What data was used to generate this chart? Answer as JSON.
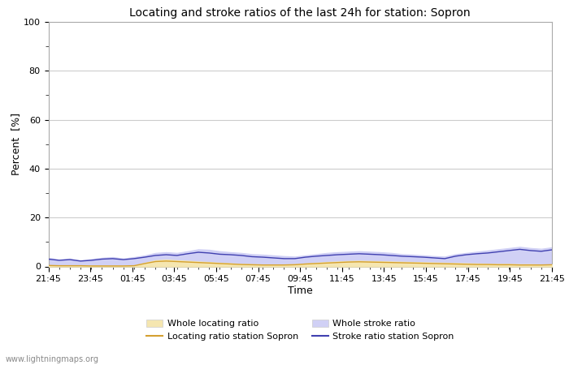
{
  "title": "Locating and stroke ratios of the last 24h for station: Sopron",
  "xlabel": "Time",
  "ylabel": "Percent  [%]",
  "ylim": [
    0,
    100
  ],
  "yticks": [
    0,
    20,
    40,
    60,
    80,
    100
  ],
  "ytick_minor": [
    10,
    30,
    50,
    70,
    90
  ],
  "x_labels": [
    "21:45",
    "23:45",
    "01:45",
    "03:45",
    "05:45",
    "07:45",
    "09:45",
    "11:45",
    "13:45",
    "15:45",
    "17:45",
    "19:45",
    "21:45"
  ],
  "background_color": "#ffffff",
  "plot_bg_color": "#ffffff",
  "grid_color": "#cccccc",
  "watermark": "www.lightningmaps.org",
  "whole_locating_color": "#f5e6b0",
  "whole_stroke_color": "#d0d0f5",
  "locating_station_color": "#d4a030",
  "stroke_station_color": "#4040b0",
  "whole_locating_ratio": [
    0.5,
    0.4,
    0.4,
    0.4,
    0.3,
    0.3,
    0.3,
    0.3,
    0.4,
    1.5,
    2.5,
    2.8,
    2.5,
    2.3,
    2.0,
    1.8,
    1.5,
    1.3,
    1.0,
    0.9,
    0.8,
    0.8,
    0.8,
    0.9,
    1.2,
    1.5,
    1.8,
    2.0,
    2.2,
    2.3,
    2.2,
    2.1,
    2.0,
    1.9,
    1.8,
    1.7,
    1.6,
    1.5,
    1.4,
    1.3,
    1.2,
    1.1,
    1.0,
    1.0,
    0.9,
    0.9,
    0.8,
    0.8
  ],
  "whole_stroke_ratio": [
    3.5,
    2.8,
    3.2,
    2.5,
    3.0,
    3.5,
    3.8,
    3.2,
    3.8,
    4.5,
    5.5,
    5.8,
    5.5,
    6.2,
    7.0,
    6.8,
    6.2,
    5.8,
    5.5,
    5.0,
    4.8,
    4.5,
    4.2,
    4.0,
    4.5,
    5.0,
    5.5,
    5.8,
    6.0,
    6.2,
    6.0,
    5.8,
    5.5,
    5.0,
    4.8,
    4.5,
    4.2,
    4.0,
    5.0,
    5.5,
    6.0,
    6.5,
    7.0,
    7.5,
    8.0,
    7.5,
    7.2,
    7.8
  ],
  "locating_station_ratio": [
    0.4,
    0.3,
    0.3,
    0.3,
    0.2,
    0.2,
    0.2,
    0.2,
    0.3,
    1.2,
    2.0,
    2.2,
    2.0,
    1.8,
    1.6,
    1.4,
    1.2,
    1.0,
    0.8,
    0.7,
    0.6,
    0.6,
    0.6,
    0.7,
    1.0,
    1.2,
    1.4,
    1.6,
    1.8,
    1.9,
    1.8,
    1.7,
    1.6,
    1.5,
    1.4,
    1.3,
    1.2,
    1.1,
    1.0,
    0.9,
    0.8,
    0.8,
    0.7,
    0.7,
    0.6,
    0.6,
    0.6,
    0.7
  ],
  "stroke_station_ratio": [
    3.0,
    2.5,
    2.8,
    2.2,
    2.5,
    3.0,
    3.2,
    2.8,
    3.2,
    3.8,
    4.5,
    4.8,
    4.5,
    5.2,
    5.8,
    5.5,
    5.0,
    4.8,
    4.5,
    4.0,
    3.8,
    3.5,
    3.2,
    3.2,
    3.8,
    4.2,
    4.5,
    4.8,
    5.0,
    5.2,
    5.0,
    4.8,
    4.5,
    4.2,
    4.0,
    3.8,
    3.5,
    3.2,
    4.2,
    4.8,
    5.2,
    5.5,
    6.0,
    6.5,
    7.0,
    6.5,
    6.2,
    6.8
  ],
  "figsize": [
    7.0,
    4.5
  ],
  "dpi": 100
}
